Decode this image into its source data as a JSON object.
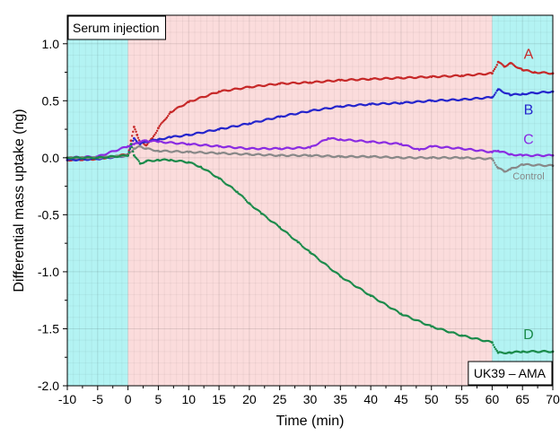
{
  "chart_data": {
    "type": "scatter",
    "xlabel": "Time (min)",
    "ylabel": "Differential mass uptake (ng)",
    "xlim": [
      -10,
      70
    ],
    "ylim": [
      -2.0,
      1.25
    ],
    "xticks": [
      -10,
      -5,
      0,
      5,
      10,
      15,
      20,
      25,
      30,
      35,
      40,
      45,
      50,
      55,
      60,
      65,
      70
    ],
    "xtick_labels": [
      "-10",
      "-5",
      "0",
      "5",
      "10",
      "15",
      "20",
      "25",
      "30",
      "35",
      "40",
      "45",
      "50",
      "55",
      "60",
      "65",
      "70"
    ],
    "yticks": [
      -2.0,
      -1.5,
      -1.0,
      -0.5,
      0.0,
      0.5,
      1.0
    ],
    "ytick_labels": [
      "-2.0",
      "-1.5",
      "-1.0",
      "-0.5",
      "0.0",
      "0.5",
      "1.0"
    ],
    "grid": true,
    "regions": [
      {
        "x_start": -10,
        "x_end": 0,
        "color": "#b3f3f3"
      },
      {
        "x_start": 0,
        "x_end": 60,
        "color": "#fbdcdc"
      },
      {
        "x_start": 60,
        "x_end": 70,
        "color": "#b3f3f3"
      }
    ],
    "annotations": {
      "top_left": "Serum injection",
      "bottom_right": "UK39 – AMA"
    },
    "series": [
      {
        "name": "A",
        "color": "#c62828",
        "x": [
          -10,
          -5,
          0,
          0.5,
          1,
          1.5,
          2,
          3,
          4,
          5,
          7,
          10,
          15,
          20,
          25,
          30,
          35,
          40,
          45,
          50,
          55,
          60,
          61,
          62,
          63,
          65,
          67,
          70
        ],
        "y": [
          -0.02,
          -0.01,
          0.03,
          0.15,
          0.27,
          0.2,
          0.14,
          0.11,
          0.17,
          0.26,
          0.4,
          0.49,
          0.58,
          0.62,
          0.65,
          0.66,
          0.68,
          0.69,
          0.7,
          0.71,
          0.72,
          0.74,
          0.84,
          0.8,
          0.83,
          0.77,
          0.75,
          0.74
        ]
      },
      {
        "name": "B",
        "color": "#2424cc",
        "x": [
          -10,
          -5,
          0,
          0.5,
          1,
          2,
          3,
          5,
          7,
          10,
          15,
          20,
          25,
          30,
          35,
          40,
          45,
          50,
          55,
          60,
          61,
          63,
          65,
          70
        ],
        "y": [
          -0.02,
          -0.01,
          0.02,
          0.1,
          0.17,
          0.12,
          0.14,
          0.16,
          0.18,
          0.2,
          0.25,
          0.3,
          0.36,
          0.41,
          0.45,
          0.47,
          0.48,
          0.5,
          0.51,
          0.53,
          0.6,
          0.55,
          0.56,
          0.58
        ]
      },
      {
        "name": "C",
        "color": "#8a2be2",
        "x": [
          -10,
          -5,
          0,
          1,
          2,
          3,
          5,
          10,
          15,
          20,
          25,
          30,
          33,
          35,
          40,
          45,
          48,
          50,
          55,
          60,
          61,
          63,
          65,
          70
        ],
        "y": [
          0.0,
          0.01,
          0.1,
          0.12,
          0.14,
          0.15,
          0.14,
          0.12,
          0.1,
          0.08,
          0.08,
          0.09,
          0.17,
          0.16,
          0.14,
          0.12,
          0.07,
          0.1,
          0.08,
          0.05,
          0.06,
          0.03,
          0.02,
          0.02
        ]
      },
      {
        "name": "Control",
        "color": "#888888",
        "x": [
          -10,
          -5,
          0,
          1,
          2,
          3,
          5,
          10,
          15,
          20,
          25,
          30,
          35,
          40,
          45,
          50,
          55,
          60,
          61,
          62,
          63,
          65,
          70
        ],
        "y": [
          0.0,
          0.0,
          0.02,
          0.08,
          0.1,
          0.08,
          0.06,
          0.05,
          0.04,
          0.03,
          0.02,
          0.02,
          0.01,
          0.01,
          0.0,
          0.0,
          0.0,
          -0.01,
          -0.09,
          -0.12,
          -0.1,
          -0.06,
          -0.07
        ]
      },
      {
        "name": "D",
        "color": "#1a8a4a",
        "x": [
          -10,
          -5,
          0,
          0.5,
          1,
          2,
          3,
          5,
          7,
          10,
          12,
          15,
          18,
          20,
          22,
          25,
          28,
          30,
          35,
          40,
          45,
          50,
          55,
          60,
          61,
          63,
          65,
          70
        ],
        "y": [
          0.0,
          0.0,
          0.02,
          0.12,
          0.02,
          -0.05,
          -0.03,
          -0.02,
          -0.02,
          -0.04,
          -0.08,
          -0.18,
          -0.3,
          -0.4,
          -0.49,
          -0.61,
          -0.74,
          -0.83,
          -1.04,
          -1.21,
          -1.37,
          -1.48,
          -1.56,
          -1.62,
          -1.71,
          -1.71,
          -1.7,
          -1.7
        ]
      }
    ]
  }
}
